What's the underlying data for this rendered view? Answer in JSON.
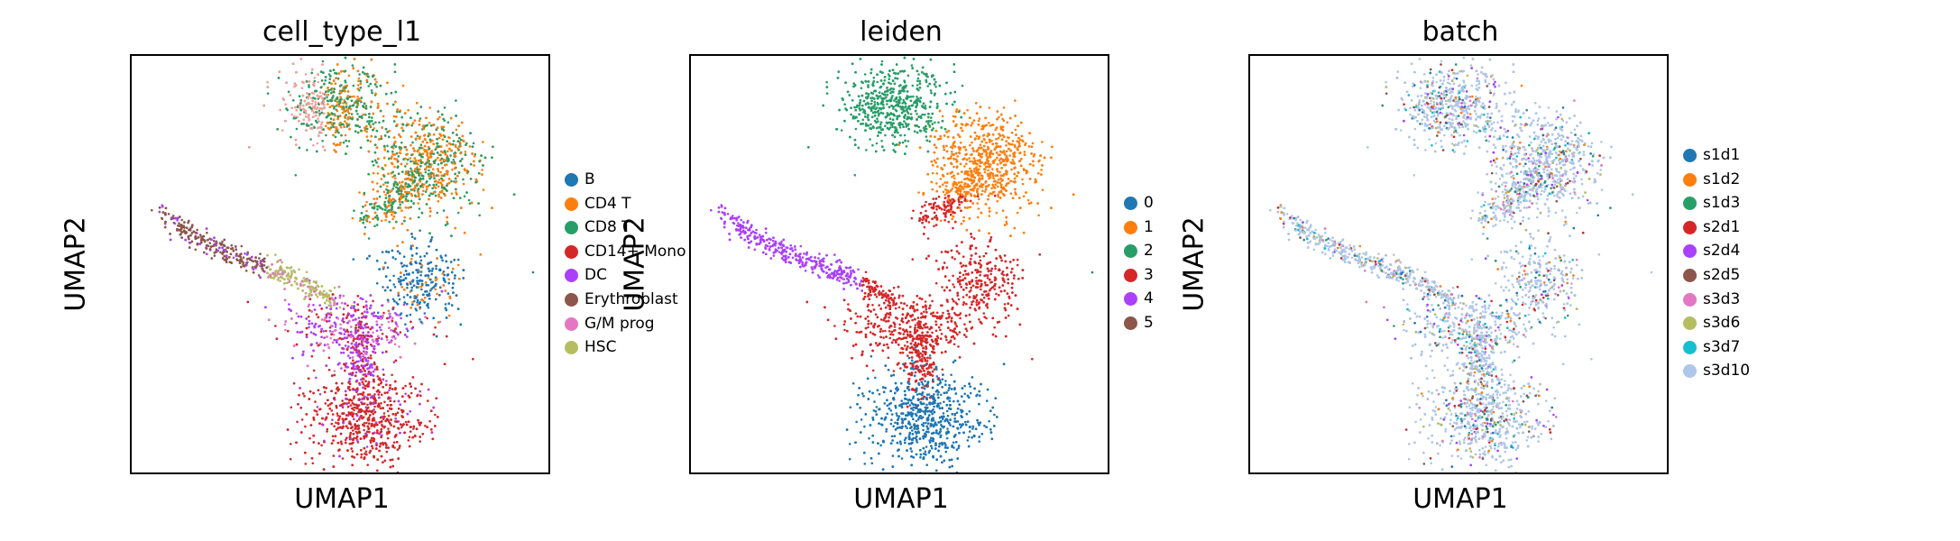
{
  "chart_data": [
    {
      "type": "scatter",
      "title": "cell_type_l1",
      "xlabel": "UMAP1",
      "ylabel": "UMAP2",
      "grid": false,
      "ticks": false,
      "legend_placement": "right",
      "legend": [
        {
          "name": "B",
          "color": "#1f77b4"
        },
        {
          "name": "CD4 T",
          "color": "#ff7f0e"
        },
        {
          "name": "CD8 T",
          "color": "#279e68"
        },
        {
          "name": "CD14+ Mono",
          "color": "#d62728"
        },
        {
          "name": "DC",
          "color": "#aa40fc"
        },
        {
          "name": "Erythroblast",
          "color": "#8c564b"
        },
        {
          "name": "G/M prog",
          "color": "#e377c2"
        },
        {
          "name": "HSC",
          "color": "#b5bd61"
        }
      ]
    },
    {
      "type": "scatter",
      "title": "leiden",
      "xlabel": "UMAP1",
      "ylabel": "UMAP2",
      "grid": false,
      "ticks": false,
      "legend_placement": "right",
      "legend": [
        {
          "name": "0",
          "color": "#1f77b4"
        },
        {
          "name": "1",
          "color": "#ff7f0e"
        },
        {
          "name": "2",
          "color": "#279e68"
        },
        {
          "name": "3",
          "color": "#d62728"
        },
        {
          "name": "4",
          "color": "#aa40fc"
        },
        {
          "name": "5",
          "color": "#8c564b"
        }
      ]
    },
    {
      "type": "scatter",
      "title": "batch",
      "xlabel": "UMAP1",
      "ylabel": "UMAP2",
      "grid": false,
      "ticks": false,
      "legend_placement": "right",
      "legend": [
        {
          "name": "s1d1",
          "color": "#1f77b4"
        },
        {
          "name": "s1d2",
          "color": "#ff7f0e"
        },
        {
          "name": "s1d3",
          "color": "#279e68"
        },
        {
          "name": "s2d1",
          "color": "#d62728"
        },
        {
          "name": "s2d4",
          "color": "#aa40fc"
        },
        {
          "name": "s2d5",
          "color": "#8c564b"
        },
        {
          "name": "s3d3",
          "color": "#e377c2"
        },
        {
          "name": "s3d6",
          "color": "#b5bd61"
        },
        {
          "name": "s3d7",
          "color": "#17becf"
        },
        {
          "name": "s3d10",
          "color": "#aec7e8"
        }
      ]
    }
  ]
}
